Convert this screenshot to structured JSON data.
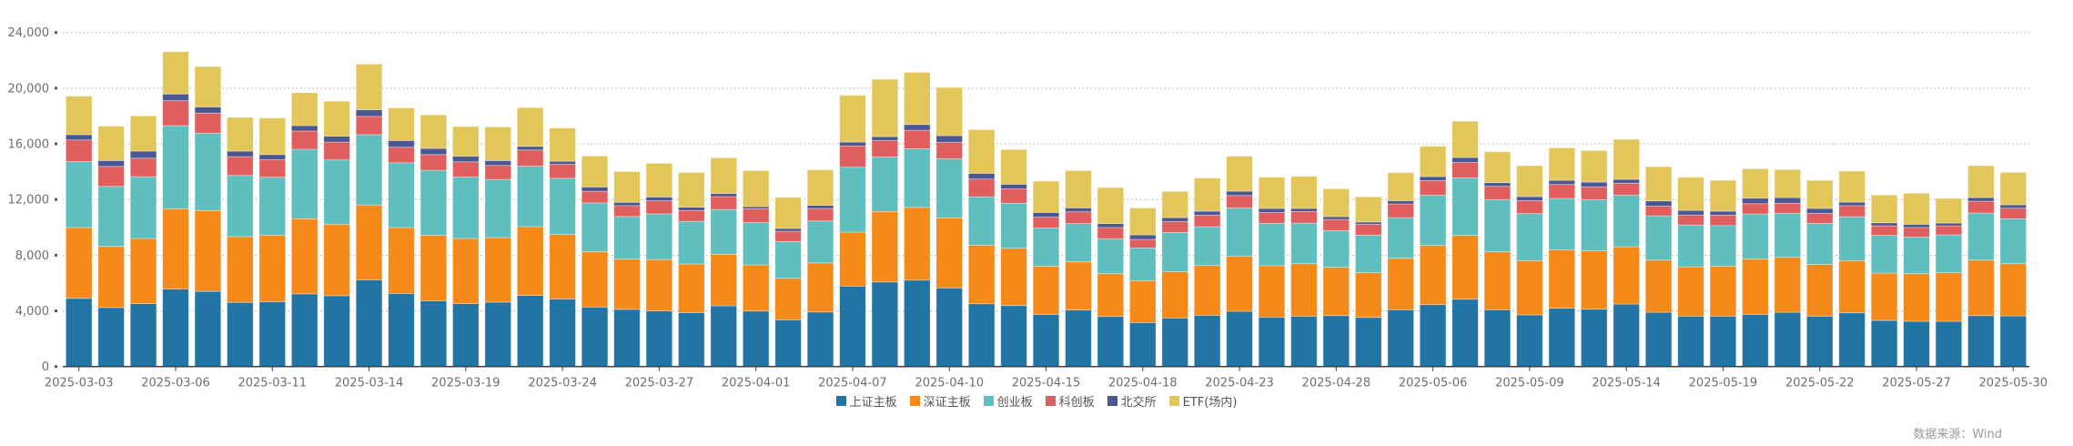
{
  "chart_data": {
    "type": "bar",
    "stacked": true,
    "title": "",
    "xlabel": "",
    "ylabel": "",
    "ylim": [
      0,
      24000
    ],
    "yticks": [
      0,
      4000,
      8000,
      12000,
      16000,
      20000,
      24000
    ],
    "ytick_labels": [
      "0",
      "4,000",
      "8,000",
      "12,000",
      "16,000",
      "20,000",
      "24,000"
    ],
    "grid": true,
    "legend_position": "bottom-center",
    "x": [
      "2025-03-03",
      "2025-03-04",
      "2025-03-05",
      "2025-03-06",
      "2025-03-07",
      "2025-03-10",
      "2025-03-11",
      "2025-03-12",
      "2025-03-13",
      "2025-03-14",
      "2025-03-17",
      "2025-03-18",
      "2025-03-19",
      "2025-03-20",
      "2025-03-21",
      "2025-03-24",
      "2025-03-25",
      "2025-03-26",
      "2025-03-27",
      "2025-03-28",
      "2025-03-31",
      "2025-04-01",
      "2025-04-02",
      "2025-04-03",
      "2025-04-07",
      "2025-04-08",
      "2025-04-09",
      "2025-04-10",
      "2025-04-11",
      "2025-04-14",
      "2025-04-15",
      "2025-04-16",
      "2025-04-17",
      "2025-04-18",
      "2025-04-21",
      "2025-04-22",
      "2025-04-23",
      "2025-04-24",
      "2025-04-25",
      "2025-04-28",
      "2025-04-29",
      "2025-04-30",
      "2025-05-06",
      "2025-05-07",
      "2025-05-08",
      "2025-05-09",
      "2025-05-12",
      "2025-05-13",
      "2025-05-14",
      "2025-05-15",
      "2025-05-16",
      "2025-05-19",
      "2025-05-20",
      "2025-05-21",
      "2025-05-22",
      "2025-05-23",
      "2025-05-26",
      "2025-05-27",
      "2025-05-28",
      "2025-05-29",
      "2025-05-30"
    ],
    "xtick_labels_every": 3,
    "series": [
      {
        "name": "上证主板",
        "color": "#2274a5",
        "values": [
          4900,
          4240,
          4520,
          5570,
          5400,
          4610,
          4660,
          5220,
          5090,
          6230,
          5250,
          4720,
          4520,
          4630,
          5110,
          4850,
          4280,
          4110,
          4000,
          3870,
          4360,
          3990,
          3360,
          3920,
          5780,
          6080,
          6210,
          5650,
          4510,
          4380,
          3750,
          4060,
          3600,
          3160,
          3490,
          3680,
          3970,
          3550,
          3620,
          3660,
          3530,
          4080,
          4450,
          4840,
          4080,
          3710,
          4190,
          4120,
          4490,
          3900,
          3620,
          3620,
          3750,
          3900,
          3620,
          3860,
          3310,
          3250,
          3250,
          3660,
          3640
        ]
      },
      {
        "name": "深证主板",
        "color": "#f5891a",
        "values": [
          5090,
          4390,
          4680,
          5770,
          5810,
          4720,
          4780,
          5400,
          5140,
          5380,
          4740,
          4720,
          4680,
          4640,
          4940,
          4640,
          3980,
          3610,
          3690,
          3500,
          3710,
          3310,
          2980,
          3530,
          3880,
          5060,
          5230,
          5030,
          4210,
          4120,
          3460,
          3460,
          3070,
          3010,
          3330,
          3580,
          3960,
          3690,
          3770,
          3470,
          3210,
          3700,
          4250,
          4580,
          4160,
          3900,
          4200,
          4190,
          4120,
          3750,
          3550,
          3590,
          3990,
          3950,
          3710,
          3750,
          3400,
          3420,
          3490,
          3990,
          3750
        ]
      },
      {
        "name": "创业板",
        "color": "#5fbebe",
        "values": [
          4740,
          4310,
          4440,
          5970,
          5560,
          4400,
          4160,
          4990,
          4610,
          5050,
          4650,
          4660,
          4420,
          4170,
          4350,
          4040,
          3500,
          3060,
          3280,
          3060,
          3220,
          3050,
          2640,
          3010,
          4660,
          3920,
          4210,
          4250,
          3470,
          3230,
          2750,
          2750,
          2510,
          2350,
          2810,
          2790,
          3470,
          3050,
          2920,
          2640,
          2700,
          2920,
          3620,
          4140,
          3750,
          3380,
          3690,
          3680,
          3710,
          3180,
          3010,
          2920,
          3220,
          3160,
          2960,
          3160,
          2710,
          2640,
          2720,
          3380,
          3220
        ]
      },
      {
        "name": "科创板",
        "color": "#e05e5e",
        "values": [
          1550,
          1440,
          1330,
          1790,
          1440,
          1350,
          1260,
          1310,
          1290,
          1310,
          1120,
          1130,
          1090,
          1010,
          1160,
          1000,
          830,
          780,
          940,
          780,
          920,
          990,
          740,
          900,
          1530,
          1180,
          1330,
          1180,
          1280,
          1040,
          780,
          850,
          810,
          610,
          790,
          830,
          890,
          780,
          830,
          800,
          780,
          980,
          1040,
          1110,
          960,
          930,
          1000,
          920,
          850,
          700,
          700,
          750,
          740,
          720,
          720,
          790,
          690,
          680,
          650,
          850,
          770
        ]
      },
      {
        "name": "北交所",
        "color": "#4a5790",
        "values": [
          380,
          420,
          510,
          480,
          440,
          400,
          370,
          390,
          420,
          480,
          480,
          440,
          400,
          350,
          260,
          220,
          310,
          240,
          270,
          240,
          220,
          150,
          200,
          220,
          280,
          280,
          410,
          480,
          410,
          330,
          330,
          280,
          280,
          330,
          280,
          280,
          310,
          290,
          220,
          200,
          160,
          240,
          290,
          350,
          260,
          290,
          300,
          340,
          280,
          370,
          340,
          280,
          400,
          410,
          350,
          250,
          220,
          230,
          200,
          260,
          240
        ]
      },
      {
        "name": "ETF(场内)",
        "color": "#e3c659",
        "values": [
          2770,
          2470,
          2530,
          3040,
          2900,
          2420,
          2630,
          2360,
          2510,
          3280,
          2340,
          2410,
          2140,
          2420,
          2780,
          2390,
          2230,
          2210,
          2420,
          2490,
          2570,
          2590,
          2240,
          2550,
          3360,
          4120,
          3750,
          3460,
          3140,
          2490,
          2250,
          2680,
          2590,
          1940,
          1880,
          2380,
          2510,
          2240,
          2310,
          2000,
          1810,
          2010,
          2180,
          2610,
          2220,
          2220,
          2330,
          2270,
          2880,
          2460,
          2380,
          2220,
          2110,
          2010,
          2020,
          2230,
          1990,
          2230,
          1770,
          2290,
          2330
        ]
      }
    ]
  },
  "legend": {
    "items": [
      {
        "label": "上证主板",
        "color": "#2274a5"
      },
      {
        "label": "深证主板",
        "color": "#f5891a"
      },
      {
        "label": "创业板",
        "color": "#5fbebe"
      },
      {
        "label": "科创板",
        "color": "#e05e5e"
      },
      {
        "label": "北交所",
        "color": "#4a5790"
      },
      {
        "label": "ETF(场内)",
        "color": "#e3c659"
      }
    ]
  },
  "source_note": "数据来源：Wind"
}
